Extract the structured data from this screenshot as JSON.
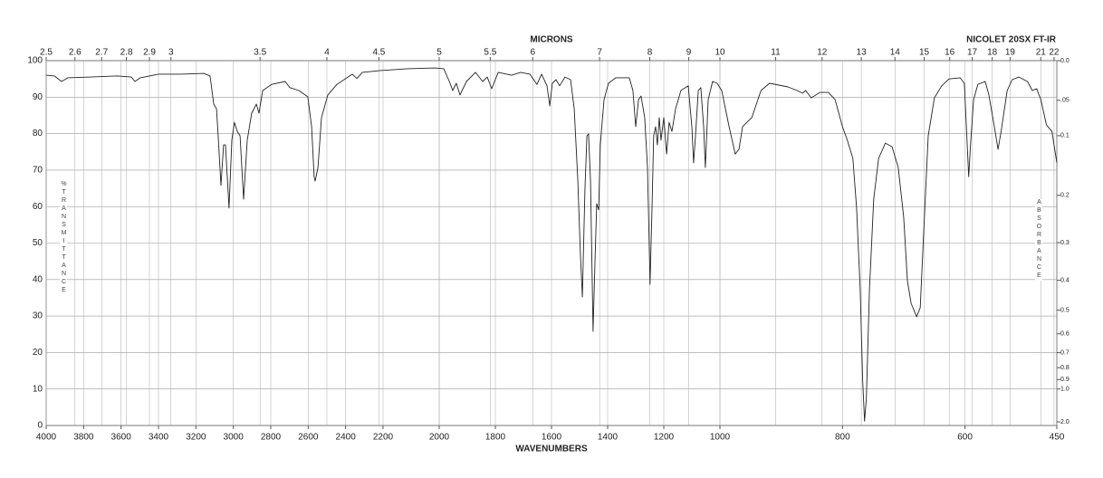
{
  "chart_data": {
    "type": "line",
    "title": "NICOLET 20SX FT-IR",
    "xlabel": "WAVENUMBERS",
    "x2label": "MICRONS",
    "ylabel": "%TRANSMITTANCE",
    "y2label": "ABSORBANCE",
    "color": "#222222",
    "grid": true,
    "xlim": [
      4000,
      450
    ],
    "xticks": [
      4000,
      3800,
      3600,
      3400,
      3200,
      3000,
      2800,
      2600,
      2400,
      2200,
      2000,
      1800,
      1600,
      1400,
      1200,
      1000,
      800,
      600,
      450
    ],
    "x2ticks": [
      2.5,
      2.6,
      2.7,
      2.8,
      2.9,
      3,
      3.5,
      4,
      4.5,
      5,
      5.5,
      6,
      7,
      8,
      9,
      10,
      11,
      12,
      13,
      14,
      15,
      16,
      17,
      18,
      19,
      21,
      22
    ],
    "ylim": [
      0,
      100
    ],
    "yticks": [
      0,
      10,
      20,
      30,
      40,
      50,
      60,
      70,
      80,
      90,
      100
    ],
    "y2_scale": "absorbance",
    "y2ticks": [
      {
        "value": 0,
        "label": "0.0"
      },
      {
        "value": 0.05,
        "label": ".05"
      },
      0.1,
      0.2,
      0.3,
      0.4,
      0.5,
      0.6,
      0.7,
      0.8,
      0.9,
      {
        "value": 1,
        "label": "1.0"
      },
      {
        "value": 2,
        "label": "2.0"
      }
    ],
    "x": [
      4000,
      3956,
      3918,
      3884,
      3763,
      3618,
      3545,
      3526,
      3497,
      3400,
      3279,
      3158,
      3124,
      3105,
      3090,
      3081,
      3066,
      3052,
      3042,
      3023,
      3008,
      2994,
      2979,
      2964,
      2945,
      2926,
      2902,
      2877,
      2863,
      2843,
      2795,
      2723,
      2698,
      2650,
      2602,
      2582,
      2568,
      2563,
      2548,
      2529,
      2495,
      2447,
      2393,
      2364,
      2340,
      2311,
      2214,
      2113,
      2016,
      1984,
      1964,
      1952,
      1939,
      1926,
      1903,
      1871,
      1845,
      1829,
      1813,
      1790,
      1742,
      1710,
      1677,
      1652,
      1635,
      1616,
      1606,
      1597,
      1584,
      1571,
      1552,
      1532,
      1519,
      1506,
      1497,
      1490,
      1481,
      1474,
      1468,
      1461,
      1452,
      1445,
      1439,
      1432,
      1426,
      1413,
      1397,
      1371,
      1323,
      1310,
      1300,
      1290,
      1281,
      1268,
      1258,
      1252,
      1249,
      1242,
      1236,
      1229,
      1223,
      1216,
      1210,
      1200,
      1190,
      1181,
      1171,
      1158,
      1139,
      1113,
      1100,
      1094,
      1087,
      1077,
      1068,
      1058,
      1052,
      1042,
      1026,
      1010,
      997,
      985,
      975,
      969,
      963,
      956,
      948,
      933,
      919,
      889,
      874,
      865,
      860,
      851,
      837,
      823,
      812,
      800,
      792,
      783,
      777,
      771,
      767,
      764,
      761,
      756,
      749,
      741,
      730,
      719,
      709,
      700,
      694,
      688,
      679,
      673,
      667,
      660,
      650,
      638,
      626,
      608,
      601,
      597,
      594,
      591,
      586,
      579,
      567,
      561,
      552,
      546,
      541,
      531,
      523,
      512,
      498,
      490,
      483,
      476,
      467,
      458,
      450
    ],
    "values": [
      96.0,
      95.8,
      94.3,
      95.3,
      95.5,
      95.8,
      95.5,
      94.3,
      95.3,
      96.3,
      96.3,
      96.5,
      95.8,
      88.1,
      86.8,
      79.4,
      65.8,
      76.9,
      76.9,
      59.6,
      78.2,
      83.1,
      80.6,
      79.4,
      62.0,
      78.2,
      85.6,
      88.1,
      85.6,
      91.8,
      93.5,
      94.3,
      92.6,
      91.8,
      90.1,
      81.9,
      68.2,
      67.0,
      70.7,
      84.4,
      90.6,
      93.5,
      95.3,
      96.3,
      95.1,
      96.8,
      97.3,
      97.8,
      98.0,
      97.8,
      94.3,
      91.8,
      93.8,
      90.6,
      94.3,
      96.8,
      94.3,
      95.5,
      92.3,
      96.8,
      96.0,
      96.8,
      96.3,
      93.5,
      96.3,
      93.1,
      87.6,
      93.8,
      94.8,
      93.1,
      95.5,
      94.8,
      86.8,
      67.0,
      47.1,
      35.2,
      64.5,
      79.4,
      79.9,
      67.0,
      25.8,
      44.7,
      60.8,
      59.1,
      76.9,
      89.3,
      93.8,
      95.3,
      95.3,
      91.8,
      81.9,
      89.3,
      90.3,
      84.4,
      70.7,
      49.6,
      38.7,
      59.6,
      79.4,
      81.9,
      76.9,
      84.4,
      78.2,
      84.4,
      74.4,
      83.1,
      80.6,
      86.8,
      91.8,
      93.1,
      81.9,
      72.0,
      79.4,
      91.8,
      92.6,
      81.9,
      70.7,
      89.3,
      94.3,
      93.8,
      91.8,
      81.9,
      74.4,
      75.7,
      81.9,
      83.1,
      84.4,
      91.8,
      93.8,
      92.8,
      91.8,
      91.1,
      91.8,
      89.8,
      91.3,
      91.3,
      89.3,
      81.9,
      78.2,
      73.2,
      59.6,
      37.2,
      12.4,
      1.2,
      7.4,
      37.2,
      62.0,
      73.2,
      77.4,
      76.4,
      70.7,
      57.1,
      39.7,
      33.5,
      29.8,
      32.3,
      54.6,
      79.4,
      89.8,
      93.1,
      95.0,
      95.3,
      93.8,
      79.4,
      68.2,
      76.9,
      89.3,
      93.5,
      94.3,
      90.6,
      81.9,
      75.7,
      80.6,
      91.8,
      94.8,
      95.5,
      94.3,
      91.8,
      92.3,
      89.3,
      82.4,
      80.6,
      72.0
    ]
  }
}
